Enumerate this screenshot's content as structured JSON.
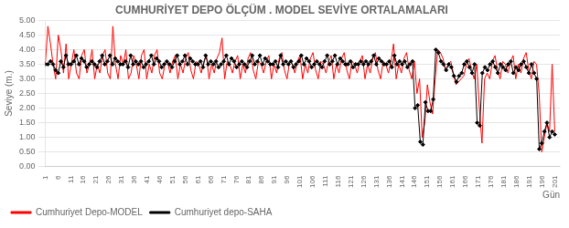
{
  "chart_data": {
    "type": "line",
    "title": "CUMHURİYET DEPO ÖLÇÜM . MODEL SEVİYE ORTALAMALARI",
    "xlabel": "Gün",
    "ylabel": "Seviye (m.)",
    "xlim": [
      1,
      203
    ],
    "xticks": [
      1,
      6,
      11,
      16,
      21,
      26,
      31,
      36,
      41,
      46,
      51,
      56,
      61,
      66,
      71,
      76,
      81,
      86,
      91,
      96,
      101,
      106,
      111,
      116,
      121,
      126,
      131,
      136,
      141,
      146,
      151,
      156,
      161,
      166,
      171,
      176,
      181,
      186,
      191,
      196,
      201
    ],
    "ylim": [
      0,
      5
    ],
    "yticks": [
      {
        "value": 0,
        "label": "0.00"
      },
      {
        "value": 0.5,
        "label": "0.50"
      },
      {
        "value": 1,
        "label": "1.00"
      },
      {
        "value": 1.5,
        "label": "1.50"
      },
      {
        "value": 2,
        "label": "2.00"
      },
      {
        "value": 2.5,
        "label": "2.50"
      },
      {
        "value": 3,
        "label": "3.00"
      },
      {
        "value": 3.5,
        "label": "3.50"
      },
      {
        "value": 4,
        "label": "4.00"
      },
      {
        "value": 4.5,
        "label": "4.50"
      },
      {
        "value": 5,
        "label": "5.00"
      }
    ],
    "grid": "y",
    "legend": "lower left",
    "series": [
      {
        "name": "Cumhuriyet Depo-MODEL",
        "color": "red",
        "marker": "none",
        "x": [
          1,
          2.0204,
          3.0408,
          4.0612,
          5.0816,
          6.102,
          7.1224,
          8.1429,
          9.1633,
          10.1837,
          11.2041,
          12.2245,
          13.2449,
          14.2653,
          15.2857,
          16.3061,
          17.3265,
          18.3469,
          19.3673,
          20.3878,
          21.4082,
          22.4286,
          23.449,
          24.4694,
          25.4898,
          26.5102,
          27.5306,
          28.551,
          29.5714,
          30.5918,
          31.6122,
          32.6327,
          33.6531,
          34.6735,
          35.6939,
          36.7143,
          37.7347,
          38.7551,
          39.7755,
          40.7959,
          41.8163,
          42.8367,
          43.8571,
          44.8776,
          45.898,
          46.9184,
          47.9388,
          48.9592,
          49.9796,
          51,
          52.0204,
          53.0408,
          54.0612,
          55.0816,
          56.102,
          57.1224,
          58.1429,
          59.1633,
          60.1837,
          61.2041,
          62.2245,
          63.2449,
          64.2653,
          65.2857,
          66.3061,
          67.3265,
          68.3469,
          69.3673,
          70.3878,
          71.4082,
          72.4286,
          73.449,
          74.4694,
          75.4898,
          76.5102,
          77.5306,
          78.551,
          79.5714,
          80.5918,
          81.6122,
          82.6327,
          83.6531,
          84.6735,
          85.6939,
          86.7143,
          87.7347,
          88.7551,
          89.7755,
          90.7959,
          91.8163,
          92.8367,
          93.8571,
          94.8776,
          95.898,
          96.9184,
          97.9388,
          98.9592,
          99.9796,
          101,
          102.0204,
          103.0408,
          104.0612,
          105.0816,
          106.102,
          107.1224,
          108.1429,
          109.1633,
          110.1837,
          111.2041,
          112.2245,
          113.2449,
          114.2653,
          115.2857,
          116.3061,
          117.3265,
          118.3469,
          119.3673,
          120.3878,
          121.4082,
          122.4286,
          123.449,
          124.4694,
          125.4898,
          126.5102,
          127.5306,
          128.551,
          129.5714,
          130.5918,
          131.6122,
          132.6327,
          133.6531,
          134.6735,
          135.6939,
          136.7143,
          137.7347,
          138.7551,
          139.7755,
          140.7959,
          141.8163,
          142.8367,
          143.8571,
          144.8776,
          145.898,
          146.9184,
          147.9388,
          148.9592,
          149.9796,
          151,
          152.0204,
          153.0408,
          154.0612,
          155.0816,
          156.102,
          157.1224,
          158.1429,
          159.1633,
          160.1837,
          161.2041,
          162.2245,
          163.2449,
          164.2653,
          165.2857,
          166.3061,
          167.3265,
          168.3469,
          169.3673,
          170.3878,
          171.4082,
          172.4286,
          173.449,
          174.4694,
          175.4898,
          176.5102,
          177.5306,
          178.551,
          179.5714,
          180.5918,
          181.6122,
          182.6327,
          183.6531,
          184.6735,
          185.6939,
          186.7143,
          187.7347,
          188.7551,
          189.7755,
          190.7959,
          191.8163,
          192.8367,
          193.8571,
          194.8776,
          195.898,
          196.9184,
          197.9388,
          198.9592,
          199.9796,
          201
        ],
        "values": [
          3.5,
          4.8,
          4.2,
          3.5,
          3.0,
          4.5,
          4.0,
          3.2,
          4.2,
          3.0,
          3.5,
          4.0,
          3.2,
          3.0,
          3.8,
          4.0,
          3.2,
          3.5,
          4.0,
          3.0,
          3.5,
          3.2,
          3.8,
          4.0,
          3.2,
          3.0,
          4.8,
          3.5,
          3.0,
          3.8,
          3.5,
          4.0,
          3.0,
          3.2,
          3.8,
          3.5,
          3.0,
          3.8,
          4.0,
          3.0,
          3.5,
          3.2,
          3.8,
          4.0,
          3.2,
          3.0,
          3.5,
          3.6,
          3.2,
          3.6,
          3.8,
          3.0,
          3.5,
          3.2,
          3.7,
          3.9,
          3.3,
          3.0,
          3.6,
          3.5,
          3.2,
          3.6,
          3.8,
          3.0,
          3.5,
          3.2,
          3.7,
          3.9,
          4.4,
          3.0,
          3.6,
          3.5,
          3.2,
          3.6,
          3.8,
          3.0,
          3.5,
          3.2,
          3.7,
          3.9,
          3.3,
          3.0,
          3.6,
          3.5,
          3.2,
          3.6,
          3.8,
          3.0,
          3.5,
          3.2,
          3.7,
          3.9,
          3.3,
          3.0,
          3.6,
          3.5,
          3.2,
          3.6,
          3.8,
          3.0,
          3.5,
          3.2,
          3.7,
          3.9,
          3.3,
          3.0,
          3.6,
          3.5,
          3.2,
          3.6,
          3.8,
          3.0,
          3.5,
          3.2,
          3.7,
          3.9,
          3.3,
          3.0,
          3.6,
          3.5,
          3.2,
          3.6,
          3.8,
          3.0,
          3.5,
          3.2,
          3.7,
          3.9,
          3.3,
          3.0,
          3.6,
          3.5,
          3.2,
          3.6,
          4.2,
          3.0,
          3.5,
          3.2,
          3.7,
          3.9,
          3.3,
          3.0,
          3.6,
          2.5,
          3.0,
          1.0,
          1.5,
          2.8,
          2.2,
          1.8,
          3.0,
          4.0,
          3.9,
          3.7,
          3.3,
          3.5,
          3.6,
          3.2,
          2.8,
          2.9,
          3.0,
          3.1,
          3.5,
          3.7,
          3.3,
          3.0,
          3.5,
          2.0,
          0.8,
          3.0,
          3.2,
          3.0,
          3.6,
          3.8,
          3.3,
          3.0,
          3.6,
          3.5,
          3.2,
          3.6,
          3.8,
          3.0,
          3.5,
          3.2,
          3.7,
          3.9,
          3.3,
          3.0,
          3.6,
          3.5,
          2.5,
          0.5,
          1.0,
          1.5,
          1.2,
          3.5,
          1.2
        ]
      },
      {
        "name": "Cumhuriyet depo-SAHA",
        "color": "black",
        "marker": "diamond",
        "x": [
          1,
          2.0152,
          3.0305,
          4.0457,
          5.0609,
          6.0761,
          7.0914,
          8.1066,
          9.1218,
          10.1371,
          11.1523,
          12.1675,
          13.1827,
          14.198,
          15.2132,
          16.2284,
          17.2437,
          18.2589,
          19.2741,
          20.2893,
          21.3046,
          22.3198,
          23.335,
          24.3503,
          25.3655,
          26.3807,
          27.3959,
          28.4112,
          29.4264,
          30.4416,
          31.4569,
          32.4721,
          33.4873,
          34.5025,
          35.5178,
          36.533,
          37.5482,
          38.5635,
          39.5787,
          40.5939,
          41.6091,
          42.6244,
          43.6396,
          44.6548,
          45.6701,
          46.6853,
          47.7005,
          48.7157,
          49.731,
          50.7462,
          51.7614,
          52.7766,
          53.7919,
          54.8071,
          55.8223,
          56.8376,
          57.8528,
          58.868,
          59.8832,
          60.8985,
          61.9137,
          62.9289,
          63.9442,
          64.9594,
          65.9746,
          66.9898,
          68.0051,
          69.0203,
          70.0355,
          71.0508,
          72.066,
          73.0812,
          74.0964,
          75.1117,
          76.1269,
          77.1421,
          78.1574,
          79.1726,
          80.1878,
          81.203,
          82.2183,
          83.2335,
          84.2487,
          85.264,
          86.2792,
          87.2944,
          88.3096,
          89.3249,
          90.3401,
          91.3553,
          92.3706,
          93.3858,
          94.401,
          95.4162,
          96.4315,
          97.4467,
          98.4619,
          99.4772,
          100.4924,
          101.5076,
          102.5228,
          103.5381,
          104.5533,
          105.5685,
          106.5838,
          107.599,
          108.6142,
          109.6294,
          110.6447,
          111.6599,
          112.6751,
          113.6904,
          114.7056,
          115.7208,
          116.736,
          117.7513,
          118.7665,
          119.7817,
          120.797,
          121.8122,
          122.8274,
          123.8426,
          124.8579,
          125.8731,
          126.8883,
          127.9036,
          128.9188,
          129.934,
          130.9492,
          131.9645,
          132.9797,
          133.9949,
          135.0102,
          136.0254,
          137.0406,
          138.0558,
          139.0711,
          140.0863,
          141.1015,
          142.1168,
          143.132,
          144.1472,
          145.1624,
          146.1777,
          147.1929,
          148.2081,
          149.2234,
          150.2386,
          151.2538,
          152.269,
          153.2843,
          154.2995,
          155.3147,
          156.3299,
          157.3452,
          158.3604,
          159.3756,
          160.3909,
          161.4061,
          162.4213,
          163.4365,
          164.4518,
          165.467,
          166.4822,
          167.4975,
          168.5127,
          169.5279,
          170.5431,
          171.5584,
          172.5736,
          173.5888,
          174.6041,
          175.6193,
          176.6345,
          177.6497,
          178.665,
          179.6802,
          180.6954,
          181.7107,
          182.7259,
          183.7411,
          184.7563,
          185.7716,
          186.7868,
          187.802,
          188.8173,
          189.8325,
          190.8477,
          191.8629,
          192.8782,
          193.8934,
          194.9086,
          195.9239,
          196.9391,
          197.9543,
          198.9695,
          199.9848,
          201
        ],
        "values": [
          3.5,
          3.5,
          3.6,
          3.5,
          3.3,
          3.2,
          3.6,
          3.4,
          3.8,
          3.5,
          3.5,
          3.6,
          3.8,
          3.5,
          3.7,
          3.6,
          3.4,
          3.5,
          3.6,
          3.5,
          3.4,
          3.6,
          3.8,
          3.5,
          3.6,
          3.8,
          3.5,
          3.7,
          3.6,
          3.5,
          3.5,
          3.6,
          3.4,
          3.8,
          3.5,
          3.6,
          3.5,
          3.6,
          3.4,
          3.5,
          3.6,
          3.8,
          3.5,
          3.7,
          3.6,
          3.4,
          3.5,
          3.6,
          3.5,
          3.4,
          3.6,
          3.8,
          3.5,
          3.6,
          3.8,
          3.5,
          3.7,
          3.6,
          3.5,
          3.5,
          3.6,
          3.4,
          3.8,
          3.5,
          3.6,
          3.5,
          3.6,
          3.4,
          3.5,
          3.6,
          3.8,
          3.5,
          3.7,
          3.6,
          3.4,
          3.5,
          3.6,
          3.5,
          3.4,
          3.6,
          3.8,
          3.5,
          3.6,
          3.8,
          3.5,
          3.7,
          3.6,
          3.5,
          3.5,
          3.6,
          3.4,
          3.8,
          3.5,
          3.6,
          3.5,
          3.6,
          3.4,
          3.5,
          3.6,
          3.8,
          3.5,
          3.7,
          3.6,
          3.4,
          3.5,
          3.6,
          3.5,
          3.4,
          3.6,
          3.8,
          3.5,
          3.6,
          3.8,
          3.5,
          3.7,
          3.6,
          3.5,
          3.5,
          3.6,
          3.4,
          3.5,
          3.5,
          3.6,
          3.5,
          3.6,
          3.5,
          3.6,
          3.8,
          3.5,
          3.7,
          3.6,
          3.5,
          3.5,
          3.6,
          3.4,
          3.8,
          3.5,
          3.6,
          3.5,
          3.6,
          3.4,
          3.5,
          3.6,
          2.0,
          2.1,
          0.85,
          0.75,
          2.2,
          1.9,
          1.9,
          2.3,
          4.0,
          3.9,
          3.6,
          3.5,
          3.3,
          3.5,
          3.4,
          3.1,
          2.9,
          3.1,
          3.2,
          3.5,
          3.6,
          3.4,
          3.2,
          3.5,
          1.5,
          1.4,
          3.2,
          3.4,
          3.3,
          3.5,
          3.6,
          3.4,
          3.2,
          3.5,
          3.4,
          3.3,
          3.5,
          3.6,
          3.2,
          3.4,
          3.3,
          3.5,
          3.6,
          3.4,
          3.2,
          3.5,
          3.2,
          3.0,
          0.6,
          0.8,
          1.2,
          1.5,
          1.0,
          1.2,
          1.1
        ]
      }
    ]
  }
}
